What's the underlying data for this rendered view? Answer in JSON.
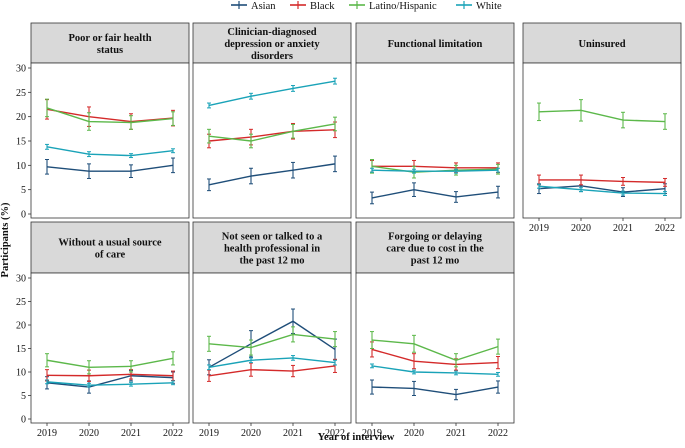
{
  "legend": {
    "entries": [
      {
        "name": "Asian",
        "color": "#1f4e79"
      },
      {
        "name": "Black",
        "color": "#d42a2a"
      },
      {
        "name": "Latino/Hispanic",
        "color": "#5cb84a"
      },
      {
        "name": "White",
        "color": "#1aa3b8"
      }
    ]
  },
  "chart_data": {
    "type": "line",
    "title": "",
    "xlabel": "Year of interview",
    "ylabel": "Participants (%)",
    "x": [
      "2019",
      "2020",
      "2021",
      "2022"
    ],
    "ylim": [
      0,
      30
    ],
    "yticks": [
      "0",
      "5",
      "10",
      "15",
      "20",
      "25",
      "30"
    ],
    "series_names": [
      "Asian",
      "Black",
      "Latino/Hispanic",
      "White"
    ],
    "panels": [
      {
        "title_lines": [
          "Poor or fair health",
          "status"
        ],
        "series": [
          {
            "name": "Asian",
            "values": [
              9.7,
              8.8,
              8.8,
              10.0
            ],
            "err": [
              1.5,
              1.5,
              1.3,
              1.5
            ]
          },
          {
            "name": "Black",
            "values": [
              21.5,
              20.0,
              19.0,
              19.7
            ],
            "err": [
              2.0,
              2.0,
              1.6,
              1.6
            ]
          },
          {
            "name": "Latino/Hispanic",
            "values": [
              21.8,
              19.0,
              18.8,
              19.6
            ],
            "err": [
              1.8,
              1.8,
              1.4,
              1.4
            ]
          },
          {
            "name": "White",
            "values": [
              13.8,
              12.3,
              12.0,
              13.0
            ],
            "err": [
              0.5,
              0.5,
              0.4,
              0.4
            ]
          }
        ]
      },
      {
        "title_lines": [
          "Clinician-diagnosed",
          "depression or anxiety",
          "disorders"
        ],
        "series": [
          {
            "name": "Asian",
            "values": [
              6.0,
              7.8,
              9.0,
              10.3
            ],
            "err": [
              1.2,
              1.6,
              1.6,
              1.6
            ]
          },
          {
            "name": "Black",
            "values": [
              15.0,
              15.8,
              17.0,
              17.3
            ],
            "err": [
              1.4,
              1.6,
              1.6,
              1.6
            ]
          },
          {
            "name": "Latino/Hispanic",
            "values": [
              16.0,
              15.0,
              17.0,
              18.5
            ],
            "err": [
              1.4,
              1.4,
              1.4,
              1.4
            ]
          },
          {
            "name": "White",
            "values": [
              22.3,
              24.2,
              25.8,
              27.3
            ],
            "err": [
              0.5,
              0.6,
              0.6,
              0.6
            ]
          }
        ]
      },
      {
        "title_lines": [
          "Functional limitation"
        ],
        "series": [
          {
            "name": "Asian",
            "values": [
              3.3,
              5.0,
              3.5,
              4.5
            ],
            "err": [
              1.2,
              1.4,
              1.1,
              1.2
            ]
          },
          {
            "name": "Black",
            "values": [
              9.8,
              9.8,
              9.5,
              9.5
            ],
            "err": [
              1.2,
              1.2,
              1.0,
              1.0
            ]
          },
          {
            "name": "Latino/Hispanic",
            "values": [
              9.8,
              8.6,
              9.0,
              9.2
            ],
            "err": [
              1.4,
              1.2,
              1.0,
              1.0
            ]
          },
          {
            "name": "White",
            "values": [
              9.0,
              8.8,
              8.8,
              9.0
            ],
            "err": [
              0.4,
              0.4,
              0.4,
              0.4
            ]
          }
        ]
      },
      {
        "title_lines": [
          "Uninsured"
        ],
        "series": [
          {
            "name": "Asian",
            "values": [
              5.2,
              5.8,
              4.5,
              5.2
            ],
            "err": [
              1.0,
              1.2,
              0.9,
              1.0
            ]
          },
          {
            "name": "Black",
            "values": [
              7.0,
              7.0,
              6.7,
              6.5
            ],
            "err": [
              1.0,
              1.0,
              0.8,
              0.8
            ]
          },
          {
            "name": "Latino/Hispanic",
            "values": [
              21.0,
              21.3,
              19.3,
              19.0
            ],
            "err": [
              1.8,
              2.2,
              1.6,
              1.6
            ]
          },
          {
            "name": "White",
            "values": [
              5.7,
              5.0,
              4.3,
              4.2
            ],
            "err": [
              0.4,
              0.4,
              0.4,
              0.4
            ]
          }
        ]
      },
      {
        "title_lines": [
          "Without a usual source",
          "of care"
        ],
        "series": [
          {
            "name": "Asian",
            "values": [
              7.7,
              6.8,
              9.2,
              8.8
            ],
            "err": [
              1.3,
              1.3,
              1.1,
              1.2
            ]
          },
          {
            "name": "Black",
            "values": [
              9.3,
              9.2,
              9.5,
              9.2
            ],
            "err": [
              1.2,
              1.2,
              1.0,
              1.0
            ]
          },
          {
            "name": "Latino/Hispanic",
            "values": [
              12.5,
              11.0,
              11.2,
              12.9
            ],
            "err": [
              1.4,
              1.4,
              1.2,
              1.4
            ]
          },
          {
            "name": "White",
            "values": [
              7.9,
              7.2,
              7.4,
              7.7
            ],
            "err": [
              0.4,
              0.4,
              0.4,
              0.4
            ]
          }
        ]
      },
      {
        "title_lines": [
          "Not seen or talked to a",
          "health professional in",
          "the past 12 mo"
        ],
        "series": [
          {
            "name": "Asian",
            "values": [
              11.0,
              16.0,
              20.8,
              14.8
            ],
            "err": [
              1.6,
              2.8,
              2.6,
              2.2
            ]
          },
          {
            "name": "Black",
            "values": [
              9.2,
              10.5,
              10.2,
              11.3
            ],
            "err": [
              1.2,
              1.4,
              1.2,
              1.4
            ]
          },
          {
            "name": "Latino/Hispanic",
            "values": [
              16.0,
              15.2,
              18.0,
              17.0
            ],
            "err": [
              1.6,
              1.6,
              1.6,
              1.6
            ]
          },
          {
            "name": "White",
            "values": [
              11.0,
              12.5,
              13.0,
              12.0
            ],
            "err": [
              0.5,
              0.5,
              0.5,
              0.5
            ]
          }
        ]
      },
      {
        "title_lines": [
          "Forgoing or delaying",
          "care due to cost in the",
          "past 12 mo"
        ],
        "series": [
          {
            "name": "Asian",
            "values": [
              6.8,
              6.5,
              5.2,
              6.8
            ],
            "err": [
              1.5,
              1.5,
              1.1,
              1.3
            ]
          },
          {
            "name": "Black",
            "values": [
              14.8,
              12.3,
              11.6,
              12.0
            ],
            "err": [
              1.6,
              1.6,
              1.2,
              1.3
            ]
          },
          {
            "name": "Latino/Hispanic",
            "values": [
              16.8,
              16.0,
              12.5,
              15.4
            ],
            "err": [
              1.8,
              1.8,
              1.4,
              1.6
            ]
          },
          {
            "name": "White",
            "values": [
              11.3,
              10.0,
              9.8,
              9.5
            ],
            "err": [
              0.4,
              0.4,
              0.4,
              0.4
            ]
          }
        ]
      }
    ]
  }
}
